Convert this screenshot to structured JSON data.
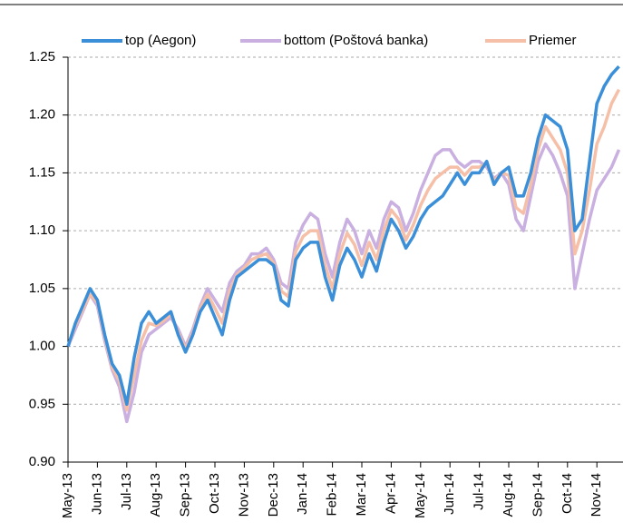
{
  "chart_data": {
    "type": "line",
    "categories": [
      "May-13",
      null,
      null,
      null,
      "Jun-13",
      null,
      null,
      null,
      "Jul-13",
      null,
      null,
      null,
      "Aug-13",
      null,
      null,
      null,
      "Sep-13",
      null,
      null,
      null,
      "Oct-13",
      null,
      null,
      null,
      "Nov-13",
      null,
      null,
      null,
      "Dec-13",
      null,
      null,
      null,
      "Jan-14",
      null,
      null,
      null,
      "Feb-14",
      null,
      null,
      null,
      "Mar-14",
      null,
      null,
      null,
      "Apr-14",
      null,
      null,
      null,
      "May-14",
      null,
      null,
      null,
      "Jun-14",
      null,
      null,
      null,
      "Jul-14",
      null,
      null,
      null,
      "Aug-14",
      null,
      null,
      null,
      "Sep-14",
      null,
      null,
      null,
      "Oct-14",
      null,
      null,
      null,
      "Nov-14",
      null,
      null,
      null
    ],
    "series": [
      {
        "name": "top (Aegon)",
        "color": "#3a8fd8",
        "values": [
          1.0,
          1.02,
          1.035,
          1.05,
          1.04,
          1.01,
          0.985,
          0.975,
          0.95,
          0.99,
          1.02,
          1.03,
          1.02,
          1.025,
          1.03,
          1.01,
          0.995,
          1.01,
          1.03,
          1.04,
          1.025,
          1.01,
          1.04,
          1.06,
          1.065,
          1.07,
          1.075,
          1.075,
          1.07,
          1.04,
          1.035,
          1.075,
          1.085,
          1.09,
          1.09,
          1.06,
          1.04,
          1.07,
          1.085,
          1.075,
          1.06,
          1.08,
          1.065,
          1.09,
          1.11,
          1.1,
          1.085,
          1.095,
          1.11,
          1.12,
          1.125,
          1.13,
          1.14,
          1.15,
          1.14,
          1.15,
          1.15,
          1.16,
          1.14,
          1.15,
          1.155,
          1.13,
          1.13,
          1.15,
          1.18,
          1.2,
          1.195,
          1.19,
          1.17,
          1.1,
          1.11,
          1.16,
          1.21,
          1.225,
          1.235,
          1.242
        ]
      },
      {
        "name": "bottom (Poštová banka)",
        "color": "#c9b0e0",
        "values": [
          1.0,
          1.015,
          1.03,
          1.045,
          1.035,
          1.005,
          0.98,
          0.965,
          0.935,
          0.96,
          0.995,
          1.01,
          1.015,
          1.02,
          1.025,
          1.015,
          1.0,
          1.015,
          1.035,
          1.05,
          1.04,
          1.03,
          1.055,
          1.065,
          1.07,
          1.08,
          1.08,
          1.085,
          1.075,
          1.055,
          1.05,
          1.09,
          1.105,
          1.115,
          1.11,
          1.08,
          1.06,
          1.09,
          1.11,
          1.1,
          1.08,
          1.1,
          1.085,
          1.11,
          1.125,
          1.12,
          1.1,
          1.115,
          1.135,
          1.15,
          1.165,
          1.17,
          1.17,
          1.16,
          1.155,
          1.16,
          1.16,
          1.155,
          1.145,
          1.15,
          1.14,
          1.11,
          1.1,
          1.13,
          1.16,
          1.175,
          1.165,
          1.15,
          1.13,
          1.05,
          1.08,
          1.11,
          1.135,
          1.145,
          1.155,
          1.17
        ]
      },
      {
        "name": "Priemer",
        "color": "#f6bfa8",
        "values": [
          1.0,
          1.018,
          1.032,
          1.045,
          1.038,
          1.008,
          0.982,
          0.97,
          0.945,
          0.975,
          1.005,
          1.02,
          1.018,
          1.022,
          1.028,
          1.012,
          0.998,
          1.012,
          1.033,
          1.045,
          1.033,
          1.02,
          1.048,
          1.062,
          1.068,
          1.075,
          1.078,
          1.08,
          1.072,
          1.048,
          1.043,
          1.082,
          1.095,
          1.1,
          1.1,
          1.07,
          1.05,
          1.08,
          1.098,
          1.088,
          1.07,
          1.09,
          1.075,
          1.1,
          1.118,
          1.11,
          1.092,
          1.105,
          1.122,
          1.135,
          1.145,
          1.15,
          1.155,
          1.155,
          1.148,
          1.155,
          1.155,
          1.158,
          1.143,
          1.15,
          1.148,
          1.12,
          1.115,
          1.14,
          1.17,
          1.19,
          1.18,
          1.17,
          1.15,
          1.08,
          1.1,
          1.135,
          1.175,
          1.19,
          1.21,
          1.222
        ]
      }
    ],
    "ylim": [
      0.9,
      1.25
    ],
    "yticks": [
      {
        "value": 0.9,
        "label": "0.90"
      },
      0.95,
      {
        "value": 1,
        "label": "1.00"
      },
      1.05,
      {
        "value": 1.1,
        "label": "1.10"
      },
      1.15,
      {
        "value": 1.2,
        "label": "1.20"
      },
      1.25
    ],
    "grid": true,
    "legend": "top"
  }
}
